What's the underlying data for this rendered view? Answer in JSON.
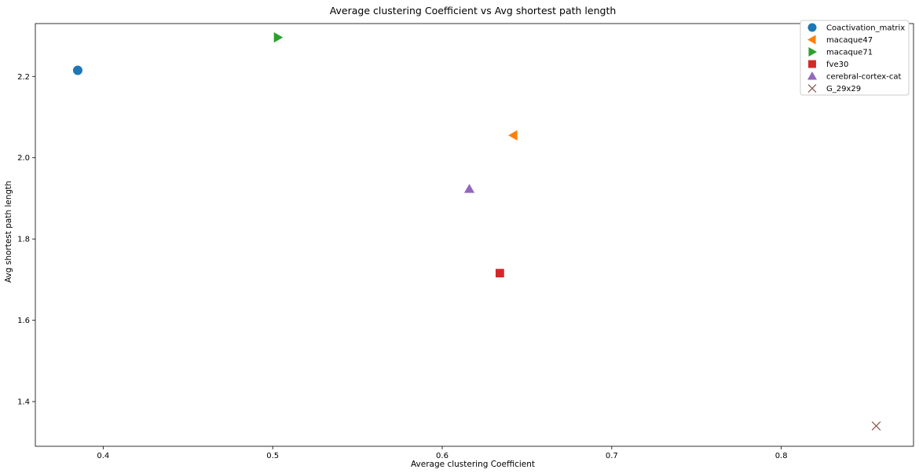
{
  "chart_data": {
    "type": "scatter",
    "title": "Average clustering Coefficient vs Avg shortest path length",
    "xlabel": "Average clustering Coefficient",
    "ylabel": "Avg shortest path length",
    "xlim": [
      0.36,
      0.878
    ],
    "ylim": [
      1.29,
      2.33
    ],
    "xticks": [
      0.4,
      0.5,
      0.6,
      0.7,
      0.8
    ],
    "xtick_labels": [
      "0.4",
      "0.5",
      "0.6",
      "0.7",
      "0.8"
    ],
    "yticks": [
      1.4,
      1.6,
      1.8,
      2.0,
      2.2
    ],
    "ytick_labels": [
      "1.4",
      "1.6",
      "1.8",
      "2.0",
      "2.2"
    ],
    "grid": false,
    "legend_position": "top-right",
    "series": [
      {
        "name": "Coactivation_matrix",
        "marker": "circle",
        "color": "#1f77b4",
        "x": 0.385,
        "y": 2.215
      },
      {
        "name": "macaque47",
        "marker": "triangle-left",
        "color": "#ff7f0e",
        "x": 0.642,
        "y": 2.055
      },
      {
        "name": "macaque71",
        "marker": "triangle-right",
        "color": "#2ca02c",
        "x": 0.503,
        "y": 2.296
      },
      {
        "name": "fve30",
        "marker": "square",
        "color": "#d62728",
        "x": 0.634,
        "y": 1.716
      },
      {
        "name": "cerebral-cortex-cat",
        "marker": "triangle-up",
        "color": "#9467bd",
        "x": 0.616,
        "y": 1.923
      },
      {
        "name": "G_29x29",
        "marker": "x",
        "color": "#8c564b",
        "x": 0.856,
        "y": 1.34
      }
    ]
  }
}
